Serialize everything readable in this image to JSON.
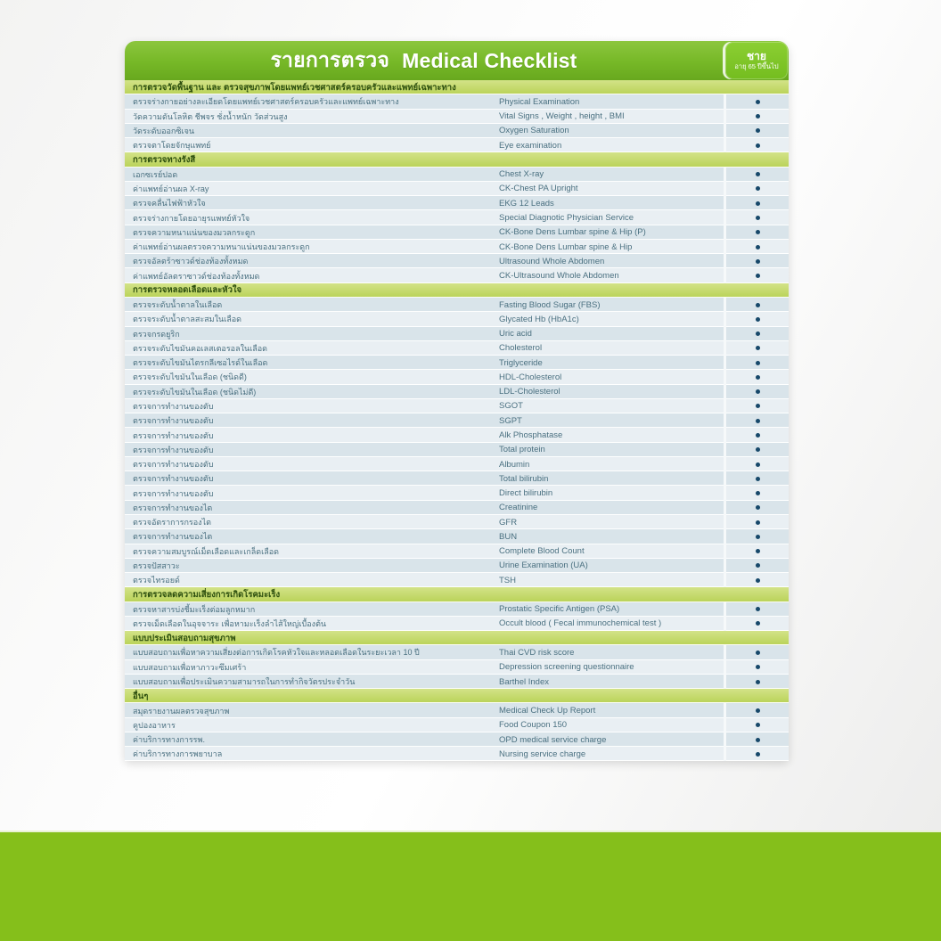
{
  "header": {
    "title_thai": "รายการตรวจ",
    "title_english": "Medical Checklist",
    "badge_gender": "ชาย",
    "badge_age": "อายุ 65 ปีขึ้นไป"
  },
  "colors": {
    "header_green": "#76b827",
    "header_green_light": "#8cc63e",
    "header_green_dark": "#68a81e",
    "badge_green": "#74bd1f",
    "badge_green_light": "#8ccf33",
    "section_green": "#b9d257",
    "section_green_light": "#d3e388",
    "section_text": "#2c4e0e",
    "row_dark": "#d9e4ea",
    "row_light": "#e9eff3",
    "row_text": "#4a7080",
    "dot_color": "#17486a",
    "footer_green": "#85bf1b"
  },
  "sections": [
    {
      "header": "การตรวจวัดพื้นฐาน และ ตรวจสุขภาพโดยแพทย์เวชศาสตร์ครอบครัวและแพทย์เฉพาะทาง",
      "rows": [
        {
          "thai": "ตรวจร่างกายอย่างละเอียดโดยแพทย์เวชศาสตร์ครอบครัวและแพทย์เฉพาะทาง",
          "english": "Physical Examination",
          "included": "•"
        },
        {
          "thai": "วัดความดันโลหิต ชีพจร ชั่งน้ำหนัก วัดส่วนสูง",
          "english": "Vital Signs , Weight , height , BMI",
          "included": "•"
        },
        {
          "thai": "วัดระดับออกซิเจน",
          "english": "Oxygen Saturation",
          "included": "•"
        },
        {
          "thai": "ตรวจตาโดยจักษุแพทย์",
          "english": "Eye examination",
          "included": "•"
        }
      ]
    },
    {
      "header": "การตรวจทางรังสี",
      "rows": [
        {
          "thai": "เอกซเรย์ปอด",
          "english": "Chest X-ray",
          "included": "•"
        },
        {
          "thai": "ค่าแพทย์อ่านผล X-ray",
          "english": "CK-Chest PA Upright",
          "included": "•"
        },
        {
          "thai": "ตรวจคลื่นไฟฟ้าหัวใจ",
          "english": "EKG 12 Leads",
          "included": "•"
        },
        {
          "thai": "ตรวจร่างกายโดยอายุรแพทย์หัวใจ",
          "english": "Special Diagnotic Physician Service",
          "included": "•"
        },
        {
          "thai": "ตรวจความหนาแน่นของมวลกระดูก",
          "english": "CK-Bone Dens Lumbar spine & Hip (P)",
          "included": "•"
        },
        {
          "thai": "ค่าแพทย์อ่านผลตรวจความหนาแน่นของมวลกระดูก",
          "english": "CK-Bone Dens Lumbar spine & Hip",
          "included": "•"
        },
        {
          "thai": "ตรวจอัลตร้าซาวด์ช่องท้องทั้งหมด",
          "english": "Ultrasound Whole Abdomen",
          "included": "•"
        },
        {
          "thai": "ค่าแพทย์อัลตราซาวด์ช่องท้องทั้งหมด",
          "english": "CK-Ultrasound Whole Abdomen",
          "included": "•"
        }
      ]
    },
    {
      "header": "การตรวจหลอดเลือดและหัวใจ",
      "rows": [
        {
          "thai": "ตรวจระดับน้ำตาลในเลือด",
          "english": "Fasting Blood Sugar (FBS)",
          "included": "•"
        },
        {
          "thai": "ตรวจระดับน้ำตาลสะสมในเลือด",
          "english": "Glycated Hb (HbA1c)",
          "included": "•"
        },
        {
          "thai": "ตรวจกรดยูริก",
          "english": "Uric acid",
          "included": "•"
        },
        {
          "thai": "ตรวจระดับไขมันคอเลสเตอรอลในเลือด",
          "english": "Cholesterol",
          "included": "•"
        },
        {
          "thai": "ตรวจระดับไขมันไตรกลีเซอไรด์ในเลือด",
          "english": "Triglyceride",
          "included": "•"
        },
        {
          "thai": "ตรวจระดับไขมันในเลือด (ชนิดดี)",
          "english": "HDL-Cholesterol",
          "included": "•"
        },
        {
          "thai": "ตรวจระดับไขมันในเลือด (ชนิดไม่ดี)",
          "english": "LDL-Cholesterol",
          "included": "•"
        },
        {
          "thai": "ตรวจการทำงานของตับ",
          "english": "SGOT",
          "included": "•"
        },
        {
          "thai": "ตรวจการทำงานของตับ",
          "english": "SGPT",
          "included": "•"
        },
        {
          "thai": "ตรวจการทำงานของตับ",
          "english": "Alk Phosphatase",
          "included": "•"
        },
        {
          "thai": "ตรวจการทำงานของตับ",
          "english": "Total protein",
          "included": "•"
        },
        {
          "thai": "ตรวจการทำงานของตับ",
          "english": "Albumin",
          "included": "•"
        },
        {
          "thai": "ตรวจการทำงานของตับ",
          "english": "Total bilirubin",
          "included": "•"
        },
        {
          "thai": "ตรวจการทำงานของตับ",
          "english": "Direct bilirubin",
          "included": "•"
        },
        {
          "thai": "ตรวจการทำงานของไต",
          "english": "Creatinine",
          "included": "•"
        },
        {
          "thai": "ตรวจอัตราการกรองไต",
          "english": "GFR",
          "included": "•"
        },
        {
          "thai": "ตรวจการทำงานของไต",
          "english": "BUN",
          "included": "•"
        },
        {
          "thai": "ตรวจความสมบูรณ์เม็ดเลือดและเกล็ดเลือด",
          "english": "Complete Blood Count",
          "included": "•"
        },
        {
          "thai": "ตรวจปัสสาวะ",
          "english": "Urine Examination (UA)",
          "included": "•"
        },
        {
          "thai": "ตรวจไทรอยด์",
          "english": "TSH",
          "included": "•"
        }
      ]
    },
    {
      "header": "การตรวจลดความเสี่ยงการเกิดโรคมะเร็ง",
      "rows": [
        {
          "thai": "ตรวจหาสารบ่งชี้มะเร็งต่อมลูกหมาก",
          "english": "Prostatic Specific Antigen (PSA)",
          "included": "•"
        },
        {
          "thai": "ตรวจเม็ดเลือดในอุจจาระ เพื่อหามะเร็งลำไส้ใหญ่เบื้องต้น",
          "english": "Occult blood ( Fecal immunochemical test )",
          "included": "•"
        }
      ]
    },
    {
      "header": "แบบประเมินสอบถามสุขภาพ",
      "rows": [
        {
          "thai": "แบบสอบถามเพื่อหาความเสี่ยงต่อการเกิดโรคหัวใจและหลอดเลือดในระยะเวลา 10 ปี",
          "english": "Thai CVD risk score",
          "included": "•"
        },
        {
          "thai": "แบบสอบถามเพื่อหาภาวะซึมเศร้า",
          "english": "Depression screening questionnaire",
          "included": "•"
        },
        {
          "thai": "แบบสอบถามเพื่อประเมินความสามารถในการทำกิจวัตรประจำวัน",
          "english": "Barthel Index",
          "included": "•"
        }
      ]
    },
    {
      "header": "อื่นๆ",
      "rows": [
        {
          "thai": "สมุดรายงานผลตรวจสุขภาพ",
          "english": "Medical Check Up Report",
          "included": "•"
        },
        {
          "thai": "คูปองอาหาร",
          "english": "Food Coupon 150",
          "included": "•"
        },
        {
          "thai": "ค่าบริการทางการรพ.",
          "english": "OPD medical service charge",
          "included": "•"
        },
        {
          "thai": "ค่าบริการทางการพยาบาล",
          "english": "Nursing service charge",
          "included": "•"
        }
      ]
    }
  ]
}
